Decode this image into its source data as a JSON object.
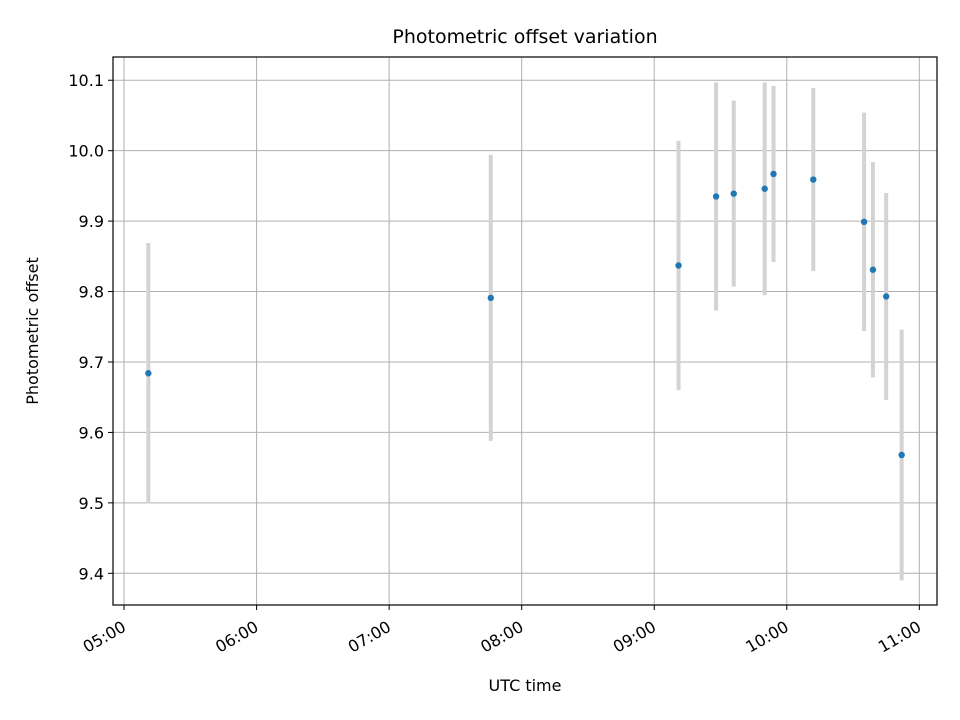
{
  "chart_data": {
    "type": "scatter",
    "title": "Photometric offset variation",
    "xlabel": "UTC time",
    "ylabel": "Photometric offset",
    "x_ticks": [
      "05:00",
      "06:00",
      "07:00",
      "08:00",
      "09:00",
      "10:00",
      "11:00"
    ],
    "y_ticks": [
      "9.4",
      "9.5",
      "9.6",
      "9.7",
      "9.8",
      "9.9",
      "10.0",
      "10.1"
    ],
    "xlim": [
      "04:55",
      "11:08"
    ],
    "ylim": [
      9.355,
      10.133
    ],
    "grid": true,
    "legend": "none",
    "colors": {
      "point": "#1f77b4",
      "errorbar": "#d3d3d3",
      "grid": "#b0b0b0"
    },
    "points": [
      {
        "x": "05:11",
        "y": 9.684,
        "err": 0.185
      },
      {
        "x": "07:46",
        "y": 9.791,
        "err": 0.203
      },
      {
        "x": "09:11",
        "y": 9.837,
        "err": 0.177
      },
      {
        "x": "09:28",
        "y": 9.935,
        "err": 0.162
      },
      {
        "x": "09:36",
        "y": 9.939,
        "err": 0.132
      },
      {
        "x": "09:50",
        "y": 9.946,
        "err": 0.151
      },
      {
        "x": "09:54",
        "y": 9.967,
        "err": 0.125
      },
      {
        "x": "10:12",
        "y": 9.959,
        "err": 0.13
      },
      {
        "x": "10:35",
        "y": 9.899,
        "err": 0.155
      },
      {
        "x": "10:39",
        "y": 9.831,
        "err": 0.153
      },
      {
        "x": "10:45",
        "y": 9.793,
        "err": 0.147
      },
      {
        "x": "10:52",
        "y": 9.568,
        "err": 0.178
      }
    ]
  }
}
